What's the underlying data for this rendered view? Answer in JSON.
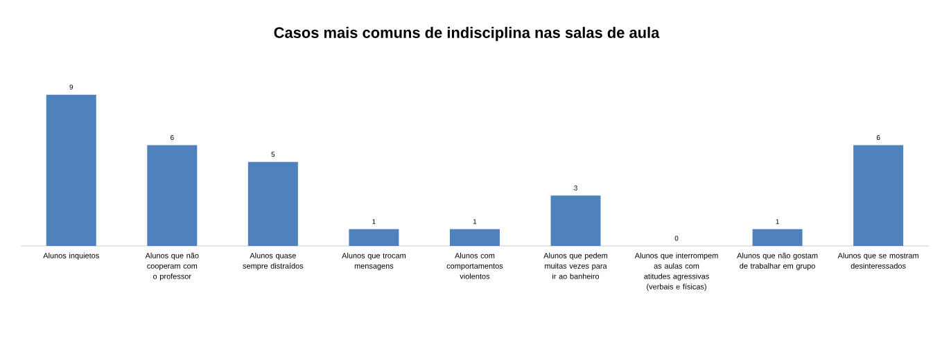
{
  "chart_data": {
    "type": "bar",
    "title": "Casos mais comuns de indisciplina nas salas de aula",
    "categories": [
      "Alunos inquietos",
      "Alunos que não cooperam com o professor",
      "Alunos quase sempre distraídos",
      "Alunos que trocam mensagens",
      "Alunos com comportamentos violentos",
      "Alunos que pedem muitas vezes para ir ao banheiro",
      "Alunos que interrompem as aulas com atitudes agressivas (verbais e físicas)",
      "Alunos que não gostam de trabalhar em grupo",
      "Alunos que se mostram desinteressados"
    ],
    "values": [
      9,
      6,
      5,
      1,
      1,
      3,
      0,
      1,
      6
    ],
    "color": "#4f81bd",
    "data_labels": true
  }
}
